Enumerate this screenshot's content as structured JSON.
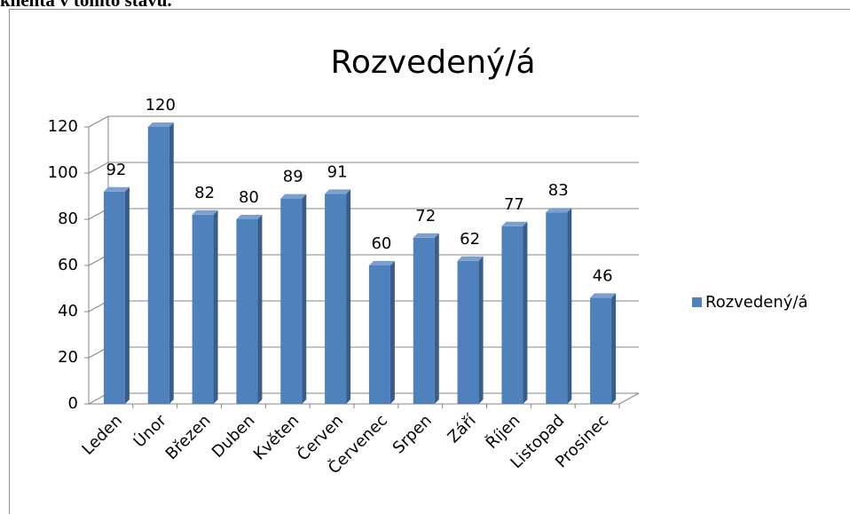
{
  "page_text": "klienta v tomto stavu.",
  "chart_data": {
    "type": "bar3d",
    "title": "Rozvedený/á",
    "categories": [
      "Leden",
      "Únor",
      "Březen",
      "Duben",
      "Květen",
      "Červen",
      "Červenec",
      "Srpen",
      "Září",
      "Říjen",
      "Listopad",
      "Prosinec"
    ],
    "series": [
      {
        "name": "Rozvedený/á",
        "color": "#4f81bd",
        "values": [
          92,
          120,
          82,
          80,
          89,
          91,
          60,
          72,
          62,
          77,
          83,
          46
        ]
      }
    ],
    "ylim": [
      0,
      120
    ],
    "yticks": [
      0,
      20,
      40,
      60,
      80,
      100,
      120
    ],
    "grid": true,
    "legend": "right"
  }
}
